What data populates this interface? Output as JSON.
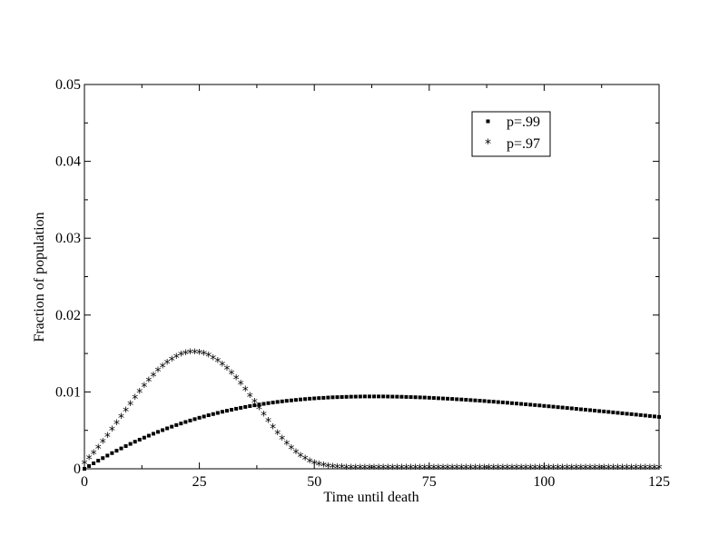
{
  "chart_data": {
    "type": "scatter",
    "title": "",
    "xlabel": "Time until death",
    "ylabel": "Fraction of population",
    "xlim": [
      0,
      125
    ],
    "ylim": [
      0,
      0.05
    ],
    "x_ticks": [
      0,
      25,
      50,
      75,
      100,
      125
    ],
    "x_tick_labels": [
      "0",
      "25",
      "50",
      "75",
      "100",
      "125"
    ],
    "y_ticks": [
      0,
      0.01,
      0.02,
      0.03,
      0.04,
      0.05
    ],
    "y_tick_labels": [
      "0",
      "0.01",
      "0.02",
      "0.03",
      "0.04",
      "0.05"
    ],
    "grid": false,
    "legend_position": "top-right",
    "x_start": 0,
    "x_end": 125,
    "x_step": 1,
    "series": [
      {
        "name": "p=.99",
        "marker": "square",
        "color": "#000000",
        "values": [
          0.0,
          0.00036,
          0.00071,
          0.00105,
          0.00139,
          0.00172,
          0.00204,
          0.00235,
          0.00265,
          0.00295,
          0.00324,
          0.00352,
          0.00379,
          0.00405,
          0.00431,
          0.00456,
          0.0048,
          0.00503,
          0.00526,
          0.00548,
          0.00569,
          0.00589,
          0.00609,
          0.00628,
          0.00646,
          0.00664,
          0.0068,
          0.00697,
          0.00712,
          0.00727,
          0.00742,
          0.00755,
          0.00768,
          0.00781,
          0.00793,
          0.00805,
          0.00816,
          0.00826,
          0.00836,
          0.00845,
          0.00854,
          0.00862,
          0.0087,
          0.00877,
          0.00884,
          0.0089,
          0.00896,
          0.00902,
          0.00907,
          0.00912,
          0.00916,
          0.0092,
          0.00923,
          0.00927,
          0.0093,
          0.00932,
          0.00934,
          0.00936,
          0.00938,
          0.00939,
          0.0094,
          0.00941,
          0.00941,
          0.00941,
          0.00941,
          0.00941,
          0.0094,
          0.00939,
          0.00938,
          0.00937,
          0.00935,
          0.00933,
          0.00931,
          0.00929,
          0.00927,
          0.00924,
          0.00921,
          0.00918,
          0.00915,
          0.00912,
          0.00909,
          0.00905,
          0.00902,
          0.00898,
          0.00894,
          0.0089,
          0.00886,
          0.00882,
          0.00877,
          0.00873,
          0.00868,
          0.00864,
          0.00859,
          0.00854,
          0.00849,
          0.00844,
          0.00839,
          0.00834,
          0.00829,
          0.00824,
          0.00818,
          0.00813,
          0.00808,
          0.00802,
          0.00797,
          0.00791,
          0.00786,
          0.0078,
          0.00774,
          0.00769,
          0.00763,
          0.00757,
          0.00751,
          0.00746,
          0.0074,
          0.00734,
          0.00728,
          0.00722,
          0.00716,
          0.00711,
          0.00705,
          0.00699,
          0.00693,
          0.00687,
          0.00681,
          0.00675
        ]
      },
      {
        "name": "p=.97",
        "marker": "asterisk",
        "color": "#000000",
        "values": [
          0.00059,
          0.00122,
          0.0019,
          0.00262,
          0.00338,
          0.00416,
          0.00497,
          0.00579,
          0.00662,
          0.00745,
          0.00827,
          0.00908,
          0.00986,
          0.01061,
          0.01133,
          0.012,
          0.01262,
          0.01318,
          0.01367,
          0.01409,
          0.01444,
          0.01471,
          0.0149,
          0.01501,
          0.01503,
          0.01496,
          0.01481,
          0.01458,
          0.01427,
          0.01388,
          0.01342,
          0.01288,
          0.01228,
          0.01162,
          0.01091,
          0.01015,
          0.00936,
          0.00855,
          0.00773,
          0.0069,
          0.00608,
          0.00528,
          0.00452,
          0.0038,
          0.00314,
          0.00254,
          0.00201,
          0.00155,
          0.00116,
          0.00085,
          0.0006,
          0.00041,
          0.00027,
          0.00017,
          0.0001,
          6e-05,
          3e-05,
          2e-05,
          1e-05,
          1e-05,
          0.0,
          0.0,
          0.0,
          0.0,
          0.0,
          0.0,
          0.0,
          0.0,
          0.0,
          0.0,
          0.0,
          0.0,
          0.0,
          0.0,
          0.0,
          0.0,
          0.0,
          0.0,
          0.0,
          0.0,
          0.0,
          0.0,
          0.0,
          0.0,
          0.0,
          0.0,
          0.0,
          0.0,
          0.0,
          0.0,
          0.0,
          0.0,
          0.0,
          0.0,
          0.0,
          0.0,
          0.0,
          0.0,
          0.0,
          0.0,
          0.0,
          0.0,
          0.0,
          0.0,
          0.0,
          0.0,
          0.0,
          0.0,
          0.0,
          0.0,
          0.0,
          0.0,
          0.0,
          0.0,
          0.0,
          0.0,
          0.0,
          0.0,
          0.0,
          0.0,
          0.0,
          0.0,
          0.0,
          0.0,
          0.0,
          0.0
        ]
      }
    ]
  }
}
